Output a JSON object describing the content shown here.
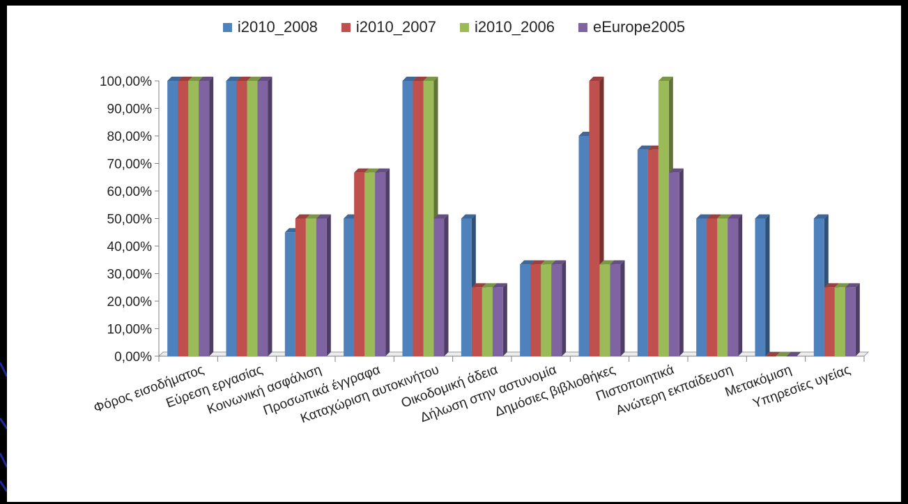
{
  "chart_data": {
    "type": "bar",
    "categories": [
      "Φόρος εισοδήματος",
      "Εύρεση εργασίας",
      "Κοινωνική ασφάλιση",
      "Προσωπικά έγγραφα",
      "Καταχώριση αυτοκινήτου",
      "Οικοδομική άδεια",
      "Δήλωση στην αστυνομία",
      "Δημόσιες βιβλιοθήκες",
      "Πιστοποιητικά",
      "Ανώτερη εκπαίδευση",
      "Μετακόμιση",
      "Υπηρεσίες υγείας"
    ],
    "series": [
      {
        "name": "i2010_2008",
        "color": "#4f81bd",
        "values": [
          100,
          100,
          45,
          50,
          100,
          50,
          33.33,
          80,
          75,
          50,
          50,
          50
        ]
      },
      {
        "name": "i2010_2007",
        "color": "#c0504d",
        "values": [
          100,
          100,
          50,
          66.67,
          100,
          25,
          33.33,
          100,
          75,
          50,
          0,
          25
        ]
      },
      {
        "name": "i2010_2006",
        "color": "#9bbb59",
        "values": [
          100,
          100,
          50,
          66.67,
          100,
          25,
          33.33,
          33.33,
          100,
          50,
          0,
          25
        ]
      },
      {
        "name": "eEurope2005",
        "color": "#8064a2",
        "values": [
          100,
          100,
          50,
          66.67,
          50,
          25,
          33.33,
          33.33,
          66.67,
          50,
          0,
          25
        ]
      }
    ],
    "yticks": [
      "0,00%",
      "10,00%",
      "20,00%",
      "30,00%",
      "40,00%",
      "50,00%",
      "60,00%",
      "70,00%",
      "80,00%",
      "90,00%",
      "100,00%"
    ],
    "ylim": [
      0,
      100
    ],
    "title": "",
    "xlabel": "",
    "ylabel": "",
    "legend_position": "top",
    "grid": false
  }
}
